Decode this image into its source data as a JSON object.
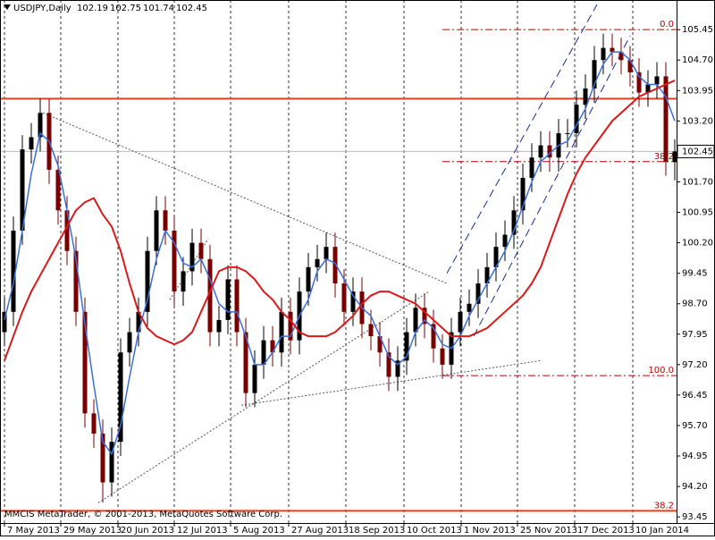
{
  "chart_data": {
    "type": "candlestick",
    "symbol": "USDJPY,Daily",
    "footer": "MMCIS MetaTrader, © 2001-2013, MetaQuotes Software Corp.",
    "xlim": [
      -0.5,
      75.2
    ],
    "ylim": [
      93.3,
      106.18
    ],
    "xticks": [
      {
        "value": 0,
        "label": "7 May 2013"
      },
      {
        "value": 6.3,
        "label": "29 May 2013"
      },
      {
        "value": 12.7,
        "label": "20 Jun 2013"
      },
      {
        "value": 19,
        "label": "12 Jul 2013"
      },
      {
        "value": 25.3,
        "label": "5 Aug 2013"
      },
      {
        "value": 31.8,
        "label": "27 Aug 2013"
      },
      {
        "value": 38.2,
        "label": "18 Sep 2013"
      },
      {
        "value": 44.7,
        "label": "10 Oct 2013"
      },
      {
        "value": 51.1,
        "label": "1 Nov 2013"
      },
      {
        "value": 57.4,
        "label": "25 Nov 2013"
      },
      {
        "value": 63.8,
        "label": "17 Dec 2013"
      },
      {
        "value": 70.3,
        "label": "10 Jan 2014"
      }
    ],
    "yticks": [
      93.45,
      {
        "value": 94.2,
        "label": "94.20"
      },
      94.95,
      {
        "value": 95.7,
        "label": "95.70"
      },
      96.45,
      {
        "value": 97.2,
        "label": "97.20"
      },
      97.95,
      {
        "value": 98.7,
        "label": "98.70"
      },
      99.45,
      {
        "value": 100.2,
        "label": "100.20"
      },
      100.95,
      {
        "value": 101.7,
        "label": "101.70"
      },
      102.45,
      {
        "value": 103.2,
        "label": "103.20"
      },
      103.95,
      {
        "value": 104.7,
        "label": "104.70"
      },
      105.45
    ],
    "grid": true,
    "bull_color": "#000000",
    "bear_color": "#7a0000",
    "ohlc": [
      [
        98.0,
        98.85,
        97.65,
        98.5
      ],
      [
        98.5,
        100.85,
        98.15,
        100.5
      ],
      [
        100.5,
        102.85,
        100.15,
        102.5
      ],
      [
        102.5,
        103.15,
        102.15,
        102.8
      ],
      [
        102.8,
        103.75,
        102.45,
        103.4
      ],
      [
        103.4,
        103.75,
        101.65,
        102.0
      ],
      [
        102.0,
        102.35,
        100.65,
        101.0
      ],
      [
        101.0,
        101.35,
        99.65,
        100.0
      ],
      [
        100.0,
        100.35,
        98.15,
        98.5
      ],
      [
        98.5,
        98.85,
        95.65,
        96.0
      ],
      [
        96.0,
        96.35,
        95.15,
        95.5
      ],
      [
        95.5,
        95.85,
        93.8,
        94.3
      ],
      [
        94.3,
        95.65,
        93.95,
        95.3
      ],
      [
        95.3,
        97.85,
        94.95,
        97.5
      ],
      [
        97.5,
        98.35,
        97.15,
        98.0
      ],
      [
        98.0,
        98.85,
        97.65,
        98.5
      ],
      [
        98.5,
        100.35,
        98.15,
        100.0
      ],
      [
        100.0,
        101.35,
        99.65,
        101.0
      ],
      [
        101.0,
        101.35,
        100.15,
        100.5
      ],
      [
        100.5,
        100.85,
        98.65,
        99.0
      ],
      [
        99.0,
        99.85,
        98.65,
        99.5
      ],
      [
        99.5,
        100.55,
        99.15,
        100.2
      ],
      [
        100.2,
        100.55,
        99.45,
        99.8
      ],
      [
        99.8,
        100.15,
        97.65,
        98.0
      ],
      [
        98.0,
        98.65,
        97.65,
        98.3
      ],
      [
        98.3,
        99.65,
        97.95,
        99.3
      ],
      [
        99.3,
        99.65,
        97.65,
        98.0
      ],
      [
        98.0,
        98.35,
        96.15,
        96.5
      ],
      [
        96.5,
        97.55,
        96.15,
        97.2
      ],
      [
        97.2,
        98.15,
        96.85,
        97.8
      ],
      [
        97.8,
        98.15,
        97.15,
        97.5
      ],
      [
        97.5,
        98.85,
        97.15,
        98.5
      ],
      [
        98.5,
        98.85,
        97.45,
        97.8
      ],
      [
        97.8,
        99.35,
        97.45,
        99.0
      ],
      [
        99.0,
        99.95,
        98.65,
        99.6
      ],
      [
        99.6,
        100.15,
        99.25,
        99.8
      ],
      [
        99.8,
        100.45,
        99.45,
        100.1
      ],
      [
        100.1,
        100.45,
        98.85,
        99.2
      ],
      [
        99.2,
        99.55,
        98.15,
        98.5
      ],
      [
        98.5,
        99.35,
        98.15,
        99.0
      ],
      [
        99.0,
        99.35,
        97.85,
        98.2
      ],
      [
        98.2,
        98.55,
        97.55,
        97.9
      ],
      [
        97.9,
        98.25,
        97.15,
        97.5
      ],
      [
        97.5,
        97.85,
        96.55,
        96.9
      ],
      [
        96.9,
        97.65,
        96.55,
        97.3
      ],
      [
        97.3,
        98.35,
        96.95,
        98.0
      ],
      [
        98.0,
        98.95,
        97.65,
        98.6
      ],
      [
        98.6,
        98.95,
        97.85,
        98.2
      ],
      [
        98.2,
        98.55,
        97.25,
        97.6
      ],
      [
        97.6,
        97.95,
        96.85,
        97.2
      ],
      [
        97.2,
        98.35,
        96.85,
        98.0
      ],
      [
        98.0,
        98.85,
        97.65,
        98.5
      ],
      [
        98.5,
        99.05,
        98.15,
        98.7
      ],
      [
        98.7,
        99.55,
        98.35,
        99.2
      ],
      [
        99.2,
        99.95,
        98.85,
        99.6
      ],
      [
        99.6,
        100.45,
        99.25,
        100.1
      ],
      [
        100.1,
        100.75,
        99.75,
        100.4
      ],
      [
        100.4,
        101.35,
        100.05,
        101.0
      ],
      [
        101.0,
        102.15,
        100.65,
        101.8
      ],
      [
        101.8,
        102.65,
        101.45,
        102.3
      ],
      [
        102.3,
        102.95,
        101.95,
        102.6
      ],
      [
        102.6,
        102.95,
        101.95,
        102.3
      ],
      [
        102.3,
        103.25,
        101.95,
        102.9
      ],
      [
        102.9,
        103.25,
        102.55,
        102.9
      ],
      [
        102.9,
        103.95,
        102.55,
        103.6
      ],
      [
        103.6,
        104.35,
        103.25,
        104.0
      ],
      [
        104.0,
        105.05,
        103.65,
        104.7
      ],
      [
        104.7,
        105.35,
        104.35,
        105.0
      ],
      [
        105.0,
        105.35,
        104.55,
        104.9
      ],
      [
        104.9,
        105.25,
        104.35,
        104.7
      ],
      [
        104.7,
        105.05,
        104.05,
        104.4
      ],
      [
        104.4,
        104.75,
        103.55,
        103.9
      ],
      [
        103.9,
        104.45,
        103.55,
        104.1
      ],
      [
        104.1,
        104.65,
        103.75,
        104.3
      ],
      [
        104.3,
        104.65,
        101.85,
        102.19
      ],
      [
        102.19,
        102.75,
        101.74,
        102.45
      ]
    ],
    "ma_fast": {
      "color": "#3a6fd8",
      "values": [
        98.3,
        99.2,
        100.5,
        101.9,
        102.9,
        102.7,
        102.1,
        101.0,
        99.8,
        98.2,
        96.7,
        95.3,
        95.0,
        95.7,
        96.9,
        98.0,
        98.8,
        99.8,
        100.5,
        100.2,
        99.7,
        99.6,
        99.8,
        99.3,
        98.7,
        98.5,
        98.5,
        97.9,
        97.2,
        97.2,
        97.5,
        97.9,
        97.9,
        98.4,
        98.8,
        99.5,
        99.8,
        99.7,
        99.3,
        98.9,
        98.6,
        98.4,
        97.9,
        97.4,
        97.2,
        97.4,
        98.0,
        98.3,
        98.1,
        97.7,
        97.6,
        97.9,
        98.4,
        98.8,
        99.2,
        99.6,
        100.0,
        100.5,
        101.1,
        101.7,
        102.2,
        102.4,
        102.6,
        102.7,
        103.1,
        103.5,
        104.1,
        104.6,
        104.9,
        104.9,
        104.7,
        104.3,
        104.1,
        104.1,
        103.8,
        103.2
      ]
    },
    "ma_slow": {
      "color": "#d81a1a",
      "values": [
        97.3,
        97.9,
        98.5,
        99.0,
        99.4,
        99.8,
        100.2,
        100.6,
        101.0,
        101.2,
        101.3,
        100.9,
        100.6,
        100.0,
        99.2,
        98.5,
        98.1,
        97.9,
        97.8,
        97.7,
        97.8,
        98.0,
        98.5,
        99.0,
        99.5,
        99.6,
        99.6,
        99.5,
        99.3,
        99.0,
        98.8,
        98.5,
        98.3,
        98.0,
        97.9,
        97.9,
        97.9,
        98.0,
        98.2,
        98.4,
        98.7,
        98.9,
        99.0,
        99.0,
        98.9,
        98.8,
        98.7,
        98.5,
        98.3,
        98.1,
        97.9,
        97.9,
        97.9,
        98.0,
        98.1,
        98.3,
        98.5,
        98.7,
        98.9,
        99.2,
        99.6,
        100.2,
        100.8,
        101.4,
        101.9,
        102.3,
        102.6,
        102.9,
        103.2,
        103.4,
        103.6,
        103.8,
        103.9,
        104.0,
        104.1,
        104.2
      ]
    },
    "hlines": [
      {
        "price": 103.75,
        "color": "#e8401a"
      },
      {
        "price": 93.6,
        "color": "#e8401a",
        "label": "38.2"
      }
    ],
    "fib_start": 49,
    "fib_levels": [
      {
        "price": 105.45,
        "label": "0.0"
      },
      {
        "price": 102.2,
        "label": "38.2"
      },
      {
        "price": 96.93,
        "label": "100.0"
      }
    ],
    "trendlines": [
      {
        "style": "dotted",
        "color": "#555555",
        "x": [
          4.3,
          49.5
        ],
        "y": [
          103.4,
          99.2
        ]
      },
      {
        "style": "dotted",
        "color": "#555555",
        "x": [
          10.5,
          47.5
        ],
        "y": [
          93.8,
          99.0
        ]
      },
      {
        "style": "dotted",
        "color": "#555555",
        "x": [
          26.5,
          60
        ],
        "y": [
          96.2,
          97.3
        ]
      },
      {
        "style": "dotted",
        "color": "#555555",
        "x": [
          18.5,
          22.8
        ],
        "y": [
          98.8,
          100.3
        ]
      },
      {
        "style": "dashed",
        "color": "#1a2a9a",
        "x": [
          49.5,
          66.3
        ],
        "y": [
          99.45,
          106.07
        ]
      },
      {
        "style": "dashed",
        "color": "#1a2a9a",
        "x": [
          52.5,
          70
        ],
        "y": [
          97.9,
          105.3
        ]
      }
    ]
  }
}
